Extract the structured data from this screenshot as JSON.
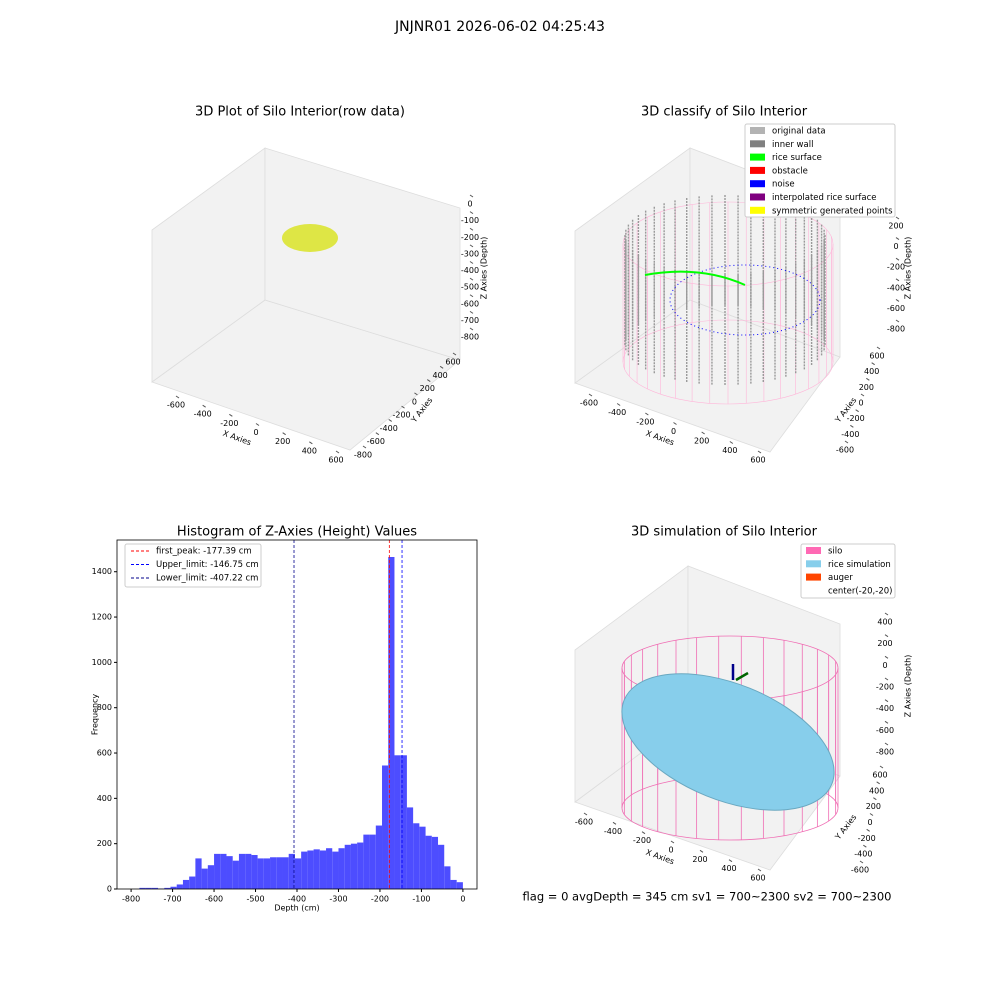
{
  "title": "JNJNR01 2026-06-02 04:25:43",
  "chart_data": [
    {
      "type": "scatter3d",
      "title": "3D Plot of Silo Interior(row data)",
      "xlabel": "X Axies",
      "ylabel": "Y Axies",
      "zlabel": "Z Axies (Depth)",
      "xticks": [
        -600,
        -400,
        -200,
        0,
        200,
        400,
        600
      ],
      "yticks": [
        -800,
        -600,
        -400,
        -200,
        0,
        200,
        400,
        600
      ],
      "zticks": [
        0,
        -100,
        -200,
        -300,
        -400,
        -500,
        -600,
        -700,
        -800
      ]
    },
    {
      "type": "scatter3d",
      "title": "3D classify of Silo Interior",
      "xlabel": "X Axies",
      "ylabel": "Y Axies",
      "zlabel": "Z Axies (Depth)",
      "xticks": [
        -600,
        -400,
        -200,
        0,
        200,
        400,
        600
      ],
      "yticks": [
        -600,
        -400,
        -200,
        0,
        200,
        400,
        600
      ],
      "zticks": [
        200,
        0,
        -200,
        -400,
        -600,
        -800
      ],
      "legend": [
        {
          "name": "original data",
          "color": "#b3b3b3"
        },
        {
          "name": "inner wall",
          "color": "#808080"
        },
        {
          "name": "rice surface",
          "color": "#00ff00"
        },
        {
          "name": "obstacle",
          "color": "#ff0000"
        },
        {
          "name": "noise",
          "color": "#0000ff"
        },
        {
          "name": "interpolated rice surface",
          "color": "#800080"
        },
        {
          "name": "symmetric generated points",
          "color": "#ffff00"
        }
      ]
    },
    {
      "type": "histogram",
      "title": "Histogram of Z-Axies (Height) Values",
      "xlabel": "Depth (cm)",
      "ylabel": "Frequency",
      "color": "#4d4dff",
      "bins": [
        -780,
        -765,
        -750,
        -735,
        -720,
        -705,
        -690,
        -675,
        -660,
        -645,
        -630,
        -615,
        -600,
        -585,
        -570,
        -555,
        -540,
        -525,
        -510,
        -495,
        -480,
        -465,
        -450,
        -435,
        -420,
        -405,
        -390,
        -375,
        -360,
        -345,
        -330,
        -315,
        -300,
        -285,
        -270,
        -255,
        -240,
        -225,
        -210,
        -195,
        -180,
        -165,
        -150,
        -135,
        -120,
        -105,
        -90,
        -75,
        -60,
        -45,
        -30,
        -15,
        0
      ],
      "counts": [
        5,
        5,
        5,
        2,
        5,
        10,
        20,
        40,
        55,
        135,
        90,
        105,
        155,
        155,
        145,
        125,
        155,
        155,
        150,
        135,
        135,
        140,
        140,
        140,
        155,
        135,
        165,
        170,
        175,
        170,
        180,
        165,
        180,
        195,
        200,
        205,
        240,
        240,
        280,
        545,
        1465,
        590,
        590,
        360,
        290,
        275,
        235,
        230,
        195,
        100,
        40,
        30
      ],
      "xlim": [
        -834,
        34
      ],
      "ylim": [
        0,
        1540
      ],
      "xticks": [
        -800,
        -700,
        -600,
        -500,
        -400,
        -300,
        -200,
        -100,
        0
      ],
      "yticks": [
        0,
        200,
        400,
        600,
        800,
        1000,
        1200,
        1400
      ],
      "lines": [
        {
          "label": "first_peak: -177.39 cm",
          "value": -177.39,
          "color": "#ff0000"
        },
        {
          "label": "Upper_limit: -146.75 cm",
          "value": -146.75,
          "color": "#0000ff"
        },
        {
          "label": "Lower_limit: -407.22 cm",
          "value": -407.22,
          "color": "#00008b"
        }
      ]
    },
    {
      "type": "surface3d",
      "title": "3D simulation of Silo Interior",
      "xlabel": "X Axies",
      "ylabel": "Y Axies",
      "zlabel": "Z Axies (Depth)",
      "xticks": [
        -600,
        -400,
        -200,
        0,
        200,
        400,
        600
      ],
      "yticks": [
        -600,
        -400,
        -200,
        0,
        200,
        400,
        600
      ],
      "zticks": [
        400,
        200,
        0,
        -200,
        -400,
        -600,
        -800
      ],
      "legend": [
        {
          "name": "silo",
          "color": "#ff69b4"
        },
        {
          "name": "rice simulation",
          "color": "#87ceeb"
        },
        {
          "name": "auger",
          "color": "#ff4500"
        },
        {
          "name": "center(-20,-20)"
        }
      ]
    }
  ],
  "status": "flag = 0     avgDepth = 345 cm  sv1 = 700~2300  sv2 = 700~2300"
}
